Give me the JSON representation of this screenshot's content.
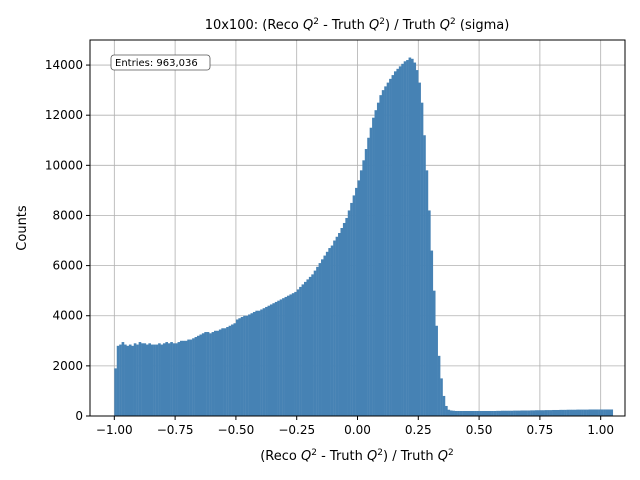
{
  "chart_data": {
    "type": "bar",
    "title_parts": [
      "10x100: (Reco ",
      "Q",
      "2",
      " - Truth ",
      "Q",
      "2",
      ") / Truth ",
      "Q",
      "2",
      " (sigma)"
    ],
    "xlabel_parts": [
      "(Reco ",
      "Q",
      "2",
      " - Truth ",
      "Q",
      "2",
      ") / Truth ",
      "Q",
      "2"
    ],
    "ylabel": "Counts",
    "annotation": "Entries: 963,036",
    "xlim": [
      -1.1,
      1.1
    ],
    "ylim": [
      0,
      15000
    ],
    "xticks": [
      -1.0,
      -0.75,
      -0.5,
      -0.25,
      0.0,
      0.25,
      0.5,
      0.75,
      1.0
    ],
    "xtick_labels": [
      "−1.00",
      "−0.75",
      "−0.50",
      "−0.25",
      "0.00",
      "0.25",
      "0.50",
      "0.75",
      "1.00"
    ],
    "yticks": [
      0,
      2000,
      4000,
      6000,
      8000,
      10000,
      12000,
      14000
    ],
    "ytick_labels": [
      "0",
      "2000",
      "4000",
      "6000",
      "8000",
      "10000",
      "12000",
      "14000"
    ],
    "grid": true,
    "bar_color": "#4682b4",
    "bins": {
      "start": -1.0,
      "width": 0.01
    },
    "values": [
      1900,
      2800,
      2850,
      2950,
      2850,
      2800,
      2850,
      2800,
      2900,
      2850,
      2950,
      2900,
      2900,
      2850,
      2900,
      2850,
      2850,
      2850,
      2900,
      2850,
      2900,
      2950,
      2900,
      2950,
      2900,
      2900,
      2950,
      3000,
      3000,
      3000,
      3050,
      3050,
      3100,
      3150,
      3200,
      3250,
      3300,
      3350,
      3350,
      3300,
      3350,
      3400,
      3400,
      3450,
      3500,
      3500,
      3550,
      3600,
      3650,
      3700,
      3850,
      3900,
      3950,
      4000,
      4000,
      4050,
      4100,
      4150,
      4200,
      4200,
      4250,
      4300,
      4350,
      4400,
      4450,
      4500,
      4550,
      4600,
      4650,
      4700,
      4750,
      4800,
      4850,
      4900,
      4950,
      5050,
      5150,
      5250,
      5350,
      5450,
      5550,
      5650,
      5800,
      5950,
      6100,
      6250,
      6400,
      6550,
      6700,
      6800,
      7000,
      7150,
      7300,
      7500,
      7700,
      7900,
      8200,
      8500,
      8800,
      9100,
      9400,
      9800,
      10200,
      10650,
      11100,
      11500,
      11900,
      12200,
      12500,
      12800,
      13000,
      13150,
      13300,
      13450,
      13600,
      13750,
      13850,
      13950,
      14050,
      14150,
      14200,
      14300,
      14250,
      14100,
      13800,
      13300,
      12500,
      11200,
      9800,
      8200,
      6600,
      5000,
      3600,
      2400,
      1500,
      800,
      400,
      250,
      220,
      210,
      200,
      200,
      200,
      200,
      200,
      200,
      200,
      200,
      200,
      200,
      200,
      200,
      200,
      200,
      200,
      200,
      200,
      205,
      205,
      210,
      210,
      210,
      210,
      210,
      215,
      215,
      215,
      220,
      220,
      220,
      220,
      225,
      225,
      230,
      230,
      230,
      230,
      235,
      235,
      235,
      240,
      240,
      240,
      245,
      245,
      245,
      250,
      250,
      250,
      250,
      255,
      255,
      255,
      255,
      255,
      260,
      260,
      260,
      260,
      260,
      260,
      260,
      260,
      260,
      260
    ]
  }
}
